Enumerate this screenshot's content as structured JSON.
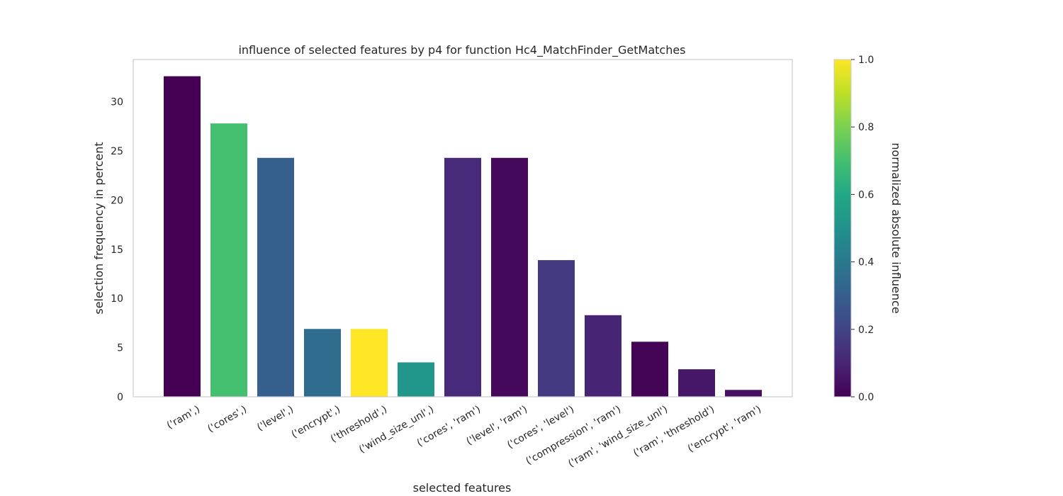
{
  "chart_data": {
    "type": "bar",
    "title": "influence of selected features by p4 for function Hc4_MatchFinder_GetMatches",
    "xlabel": "selected features",
    "ylabel": "selection frequency in percent",
    "categories": [
      "('ram',)",
      "('cores',)",
      "('level',)",
      "('encrypt',)",
      "('threshold',)",
      "('wind_size_unl',)",
      "('cores', 'ram')",
      "('level', 'ram')",
      "('cores', 'level')",
      "('compression', 'ram')",
      "('ram', 'wind_size_unl')",
      "('ram', 'threshold')",
      "('encrypt', 'ram')"
    ],
    "values": [
      32.6,
      27.8,
      24.3,
      6.9,
      6.9,
      3.5,
      24.3,
      24.3,
      13.9,
      8.3,
      5.6,
      2.8,
      0.7
    ],
    "influence": [
      0.0,
      0.7,
      0.3,
      0.35,
      1.0,
      0.52,
      0.12,
      0.02,
      0.17,
      0.1,
      0.01,
      0.06,
      0.04
    ],
    "ylim": [
      0,
      34.3
    ],
    "yticks": [
      0,
      5,
      10,
      15,
      20,
      25,
      30
    ],
    "grid": false,
    "colorbar": {
      "label": "normalized absolute influence",
      "range": [
        0,
        1
      ],
      "ticks": [
        "0.0",
        "0.2",
        "0.4",
        "0.6",
        "0.8",
        "1.0"
      ],
      "colormap": "viridis"
    }
  }
}
